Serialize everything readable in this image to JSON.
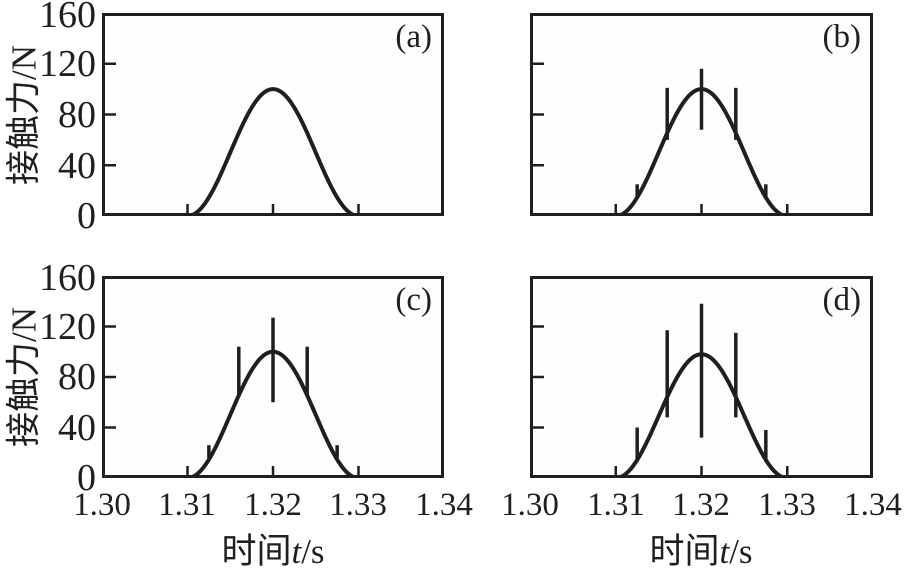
{
  "figure": {
    "background": "#ffffff",
    "line_color": "#1f1f1f"
  },
  "axes": {
    "y_label": "接触力/N",
    "x_label_cn": "时间",
    "x_label_var": "t",
    "x_label_unit": "/s",
    "x_tick_labels": [
      "1.30",
      "1.31",
      "1.32",
      "1.33",
      "1.34"
    ],
    "y_tick_labels": [
      "0",
      "40",
      "80",
      "120",
      "160"
    ],
    "x_range": [
      1.3,
      1.34
    ],
    "y_range": [
      0,
      160
    ],
    "x_ticks_inner": [
      1.31,
      1.32,
      1.33
    ],
    "y_ticks_inner": [
      40,
      80,
      120
    ]
  },
  "chart_data": [
    {
      "type": "line",
      "panel_label": "(a)",
      "xlabel": "时间t/s",
      "ylabel": "接触力/N",
      "xlim": [
        1.3,
        1.34
      ],
      "ylim": [
        0,
        160
      ],
      "pulse": {
        "shape": "haversine",
        "t_start": 1.31,
        "t_end": 1.33,
        "peak": 100
      },
      "spikes": []
    },
    {
      "type": "line",
      "panel_label": "(b)",
      "xlabel": "时间t/s",
      "ylabel": "接触力/N",
      "xlim": [
        1.3,
        1.34
      ],
      "ylim": [
        0,
        160
      ],
      "pulse": {
        "shape": "haversine",
        "t_start": 1.31,
        "t_end": 1.33,
        "peak": 100
      },
      "spikes": [
        {
          "t": 1.3125,
          "lo": 14,
          "hi": 25
        },
        {
          "t": 1.316,
          "lo": 60,
          "hi": 101
        },
        {
          "t": 1.32,
          "lo": 68,
          "hi": 116
        },
        {
          "t": 1.324,
          "lo": 60,
          "hi": 101
        },
        {
          "t": 1.3275,
          "lo": 14,
          "hi": 25
        }
      ]
    },
    {
      "type": "line",
      "panel_label": "(c)",
      "xlabel": "时间t/s",
      "ylabel": "接触力/N",
      "xlim": [
        1.3,
        1.34
      ],
      "ylim": [
        0,
        160
      ],
      "pulse": {
        "shape": "haversine",
        "t_start": 1.31,
        "t_end": 1.33,
        "peak": 100
      },
      "spikes": [
        {
          "t": 1.3125,
          "lo": 16,
          "hi": 26
        },
        {
          "t": 1.316,
          "lo": 66,
          "hi": 104
        },
        {
          "t": 1.32,
          "lo": 60,
          "hi": 127
        },
        {
          "t": 1.324,
          "lo": 66,
          "hi": 104
        },
        {
          "t": 1.3275,
          "lo": 16,
          "hi": 26
        }
      ]
    },
    {
      "type": "line",
      "panel_label": "(d)",
      "xlabel": "时间t/s",
      "ylabel": "接触力/N",
      "xlim": [
        1.3,
        1.34
      ],
      "ylim": [
        0,
        160
      ],
      "pulse": {
        "shape": "haversine",
        "t_start": 1.31,
        "t_end": 1.33,
        "peak": 98
      },
      "spikes": [
        {
          "t": 1.3125,
          "lo": 13,
          "hi": 40
        },
        {
          "t": 1.316,
          "lo": 48,
          "hi": 117
        },
        {
          "t": 1.32,
          "lo": 32,
          "hi": 138
        },
        {
          "t": 1.324,
          "lo": 48,
          "hi": 115
        },
        {
          "t": 1.3275,
          "lo": 13,
          "hi": 38
        }
      ]
    }
  ]
}
